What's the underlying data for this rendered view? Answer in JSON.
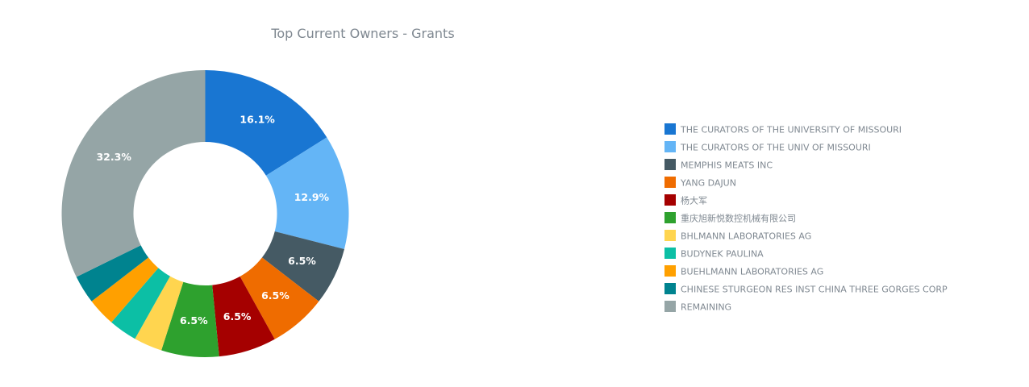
{
  "chart_data": {
    "type": "pie",
    "donut": true,
    "title": "Top Current Owners - Grants",
    "legend_position": "right",
    "slices": [
      {
        "label": "THE CURATORS OF THE UNIVERSITY OF MISSOURI",
        "value": 16.1,
        "display": "16.1%",
        "color": "#1976d2"
      },
      {
        "label": "THE CURATORS OF THE UNIV OF MISSOURI",
        "value": 12.9,
        "display": "12.9%",
        "color": "#64b5f6"
      },
      {
        "label": "MEMPHIS MEATS INC",
        "value": 6.5,
        "display": "6.5%",
        "color": "#455a64"
      },
      {
        "label": "YANG DAJUN",
        "value": 6.5,
        "display": "6.5%",
        "color": "#ef6c00"
      },
      {
        "label": "杨大军",
        "value": 6.5,
        "display": "6.5%",
        "color": "#a50000"
      },
      {
        "label": "重庆旭新悦数控机械有限公司",
        "value": 6.5,
        "display": "6.5%",
        "color": "#2ea12e"
      },
      {
        "label": "BHLMANN LABORATORIES AG",
        "value": 3.2,
        "display": "",
        "color": "#ffd54f"
      },
      {
        "label": "BUDYNEK PAULINA",
        "value": 3.2,
        "display": "",
        "color": "#0cbfa5"
      },
      {
        "label": "BUEHLMANN LABORATORIES AG",
        "value": 3.2,
        "display": "",
        "color": "#ffa000"
      },
      {
        "label": "CHINESE STURGEON RES INST CHINA THREE GORGES CORP",
        "value": 3.2,
        "display": "",
        "color": "#00838f"
      },
      {
        "label": "REMAINING",
        "value": 32.3,
        "display": "32.3%",
        "color": "#95a5a6"
      }
    ]
  }
}
